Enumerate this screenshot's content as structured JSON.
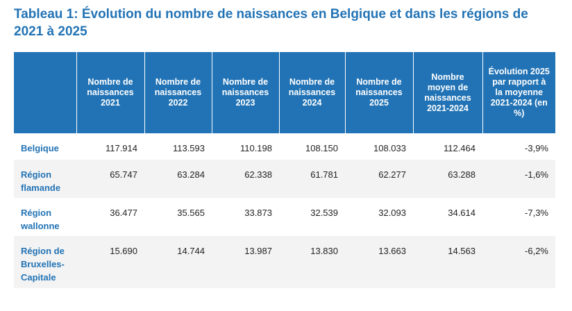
{
  "title": "Tableau 1: Évolution du nombre de naissances en Belgique et dans les régions de 2021 à 2025",
  "table": {
    "header": [
      "Nombre de naissances 2021",
      "Nombre de naissances 2022",
      "Nombre de naissances 2023",
      "Nombre de naissances 2024",
      "Nombre de naissances 2025",
      "Nombre moyen de naissances 2021-2024",
      "Évolution 2025 par rapport à la moyenne 2021-2024 (en %)"
    ],
    "rows": [
      [
        "Belgique",
        "117.914",
        "113.593",
        "110.198",
        "108.150",
        "108.033",
        "112.464",
        "-3,9%"
      ],
      [
        "Région flamande",
        "65.747",
        "63.284",
        "62.338",
        "61.781",
        "62.277",
        "63.288",
        "-1,6%"
      ],
      [
        "Région wallonne",
        "36.477",
        "35.565",
        "33.873",
        "32.539",
        "32.093",
        "34.614",
        "-7,3%"
      ],
      [
        "Région de Bruxelles-Capitale",
        "15.690",
        "14.744",
        "13.987",
        "13.830",
        "13.663",
        "14.563",
        "-6,2%"
      ]
    ]
  }
}
